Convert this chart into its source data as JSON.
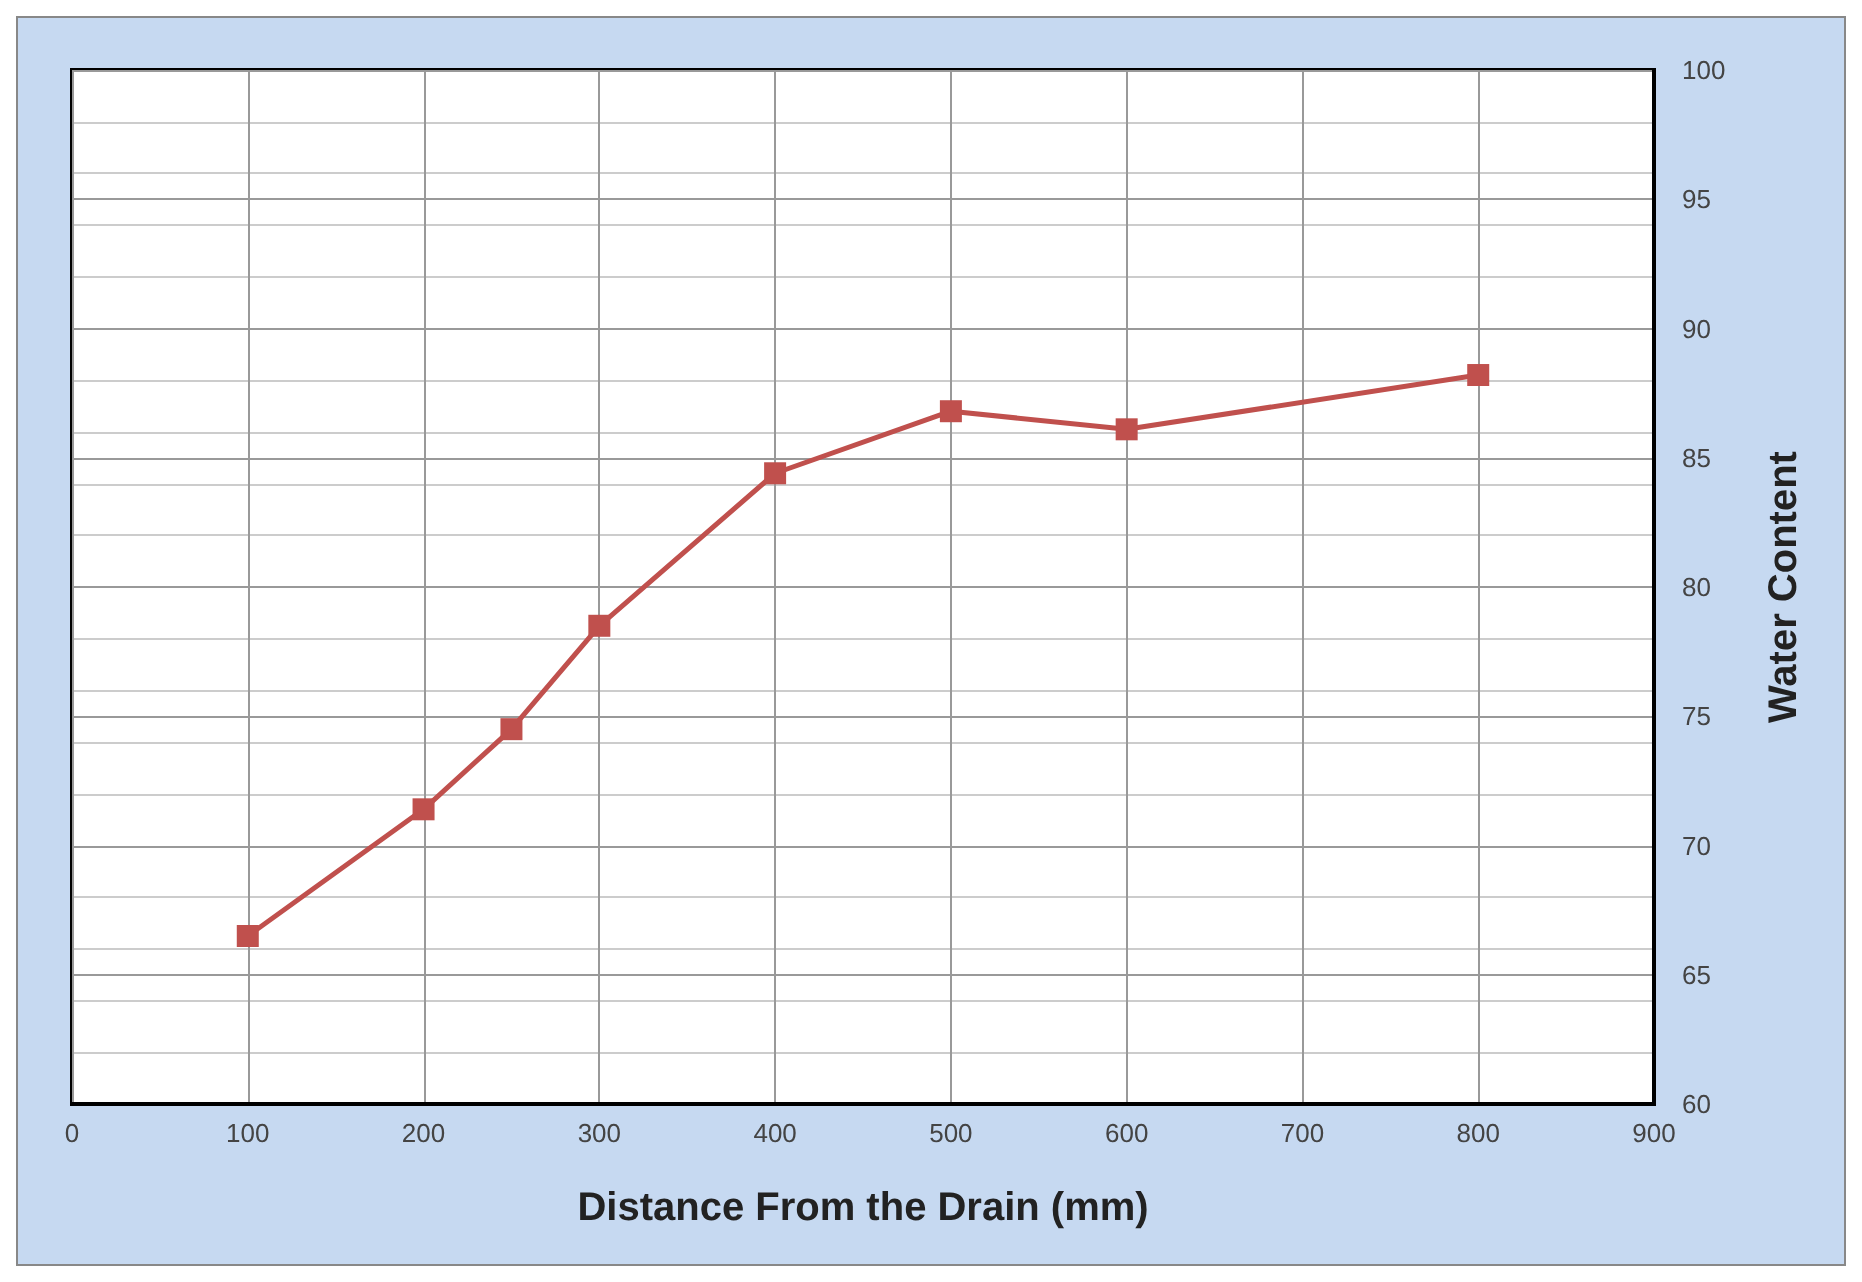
{
  "chart_data": {
    "type": "line",
    "xlabel": "Distance From the Drain (mm)",
    "ylabel": "Water Content",
    "x": [
      100,
      200,
      250,
      300,
      400,
      500,
      600,
      800
    ],
    "series": [
      {
        "color": "#c0504d",
        "values": [
          66.5,
          71.4,
          74.5,
          78.5,
          84.4,
          86.8,
          86.1,
          88.2
        ]
      }
    ],
    "xlim": [
      0,
      900
    ],
    "xticks": [
      0,
      100,
      200,
      300,
      400,
      500,
      600,
      700,
      800,
      900
    ],
    "ylim": [
      60,
      100
    ],
    "yticks": [
      60,
      65,
      70,
      75,
      80,
      85,
      90,
      95,
      100
    ],
    "grid": true,
    "marker": "square",
    "line_style": "solid"
  }
}
